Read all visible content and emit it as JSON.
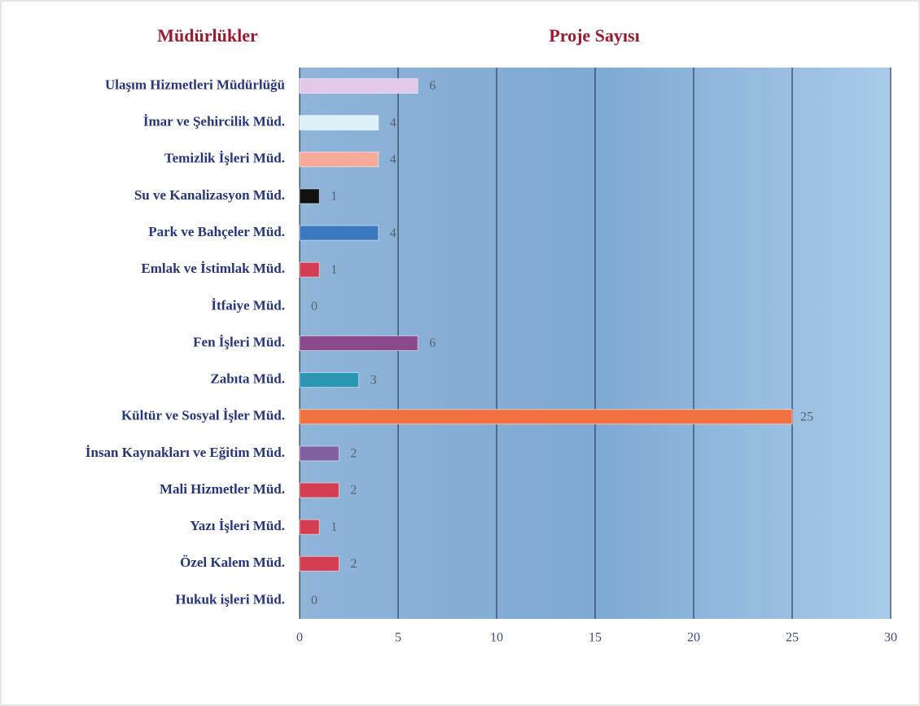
{
  "chart_data": {
    "type": "barh",
    "title": "Proje Sayısı",
    "ylabel": "Müdürlükler",
    "categories": [
      "Ulaşım Hizmetleri Müdürlüğü",
      "İmar ve Şehircilik Müd.",
      "Temizlik İşleri Müd.",
      "Su ve Kanalizasyon Müd.",
      "Park ve Bahçeler Müd.",
      "Emlak ve İstimlak Müd.",
      "İtfaiye Müd.",
      "Fen İşleri Müd.",
      "Zabıta Müd.",
      "Kültür ve Sosyal İşler Müd.",
      "İnsan Kaynakları ve Eğitim Müd.",
      "Mali Hizmetler Müd.",
      "Yazı İşleri Müd.",
      "Özel Kalem Müd.",
      "Hukuk işleri Müd."
    ],
    "values": [
      6,
      4,
      4,
      1,
      4,
      1,
      0,
      6,
      3,
      25,
      2,
      2,
      1,
      2,
      0
    ],
    "colors": [
      "#e2c9ea",
      "#dcf0fa",
      "#f8aa98",
      "#111111",
      "#3a78c0",
      "#d33e52",
      "#d33e52",
      "#8a4a8c",
      "#2a96b2",
      "#f07040",
      "#8060a0",
      "#d33e52",
      "#d33e52",
      "#d33e52",
      "#d33e52"
    ],
    "xlim": [
      0,
      30
    ],
    "xticks": [
      0,
      5,
      10,
      15,
      20,
      25,
      30
    ],
    "grid": true
  }
}
